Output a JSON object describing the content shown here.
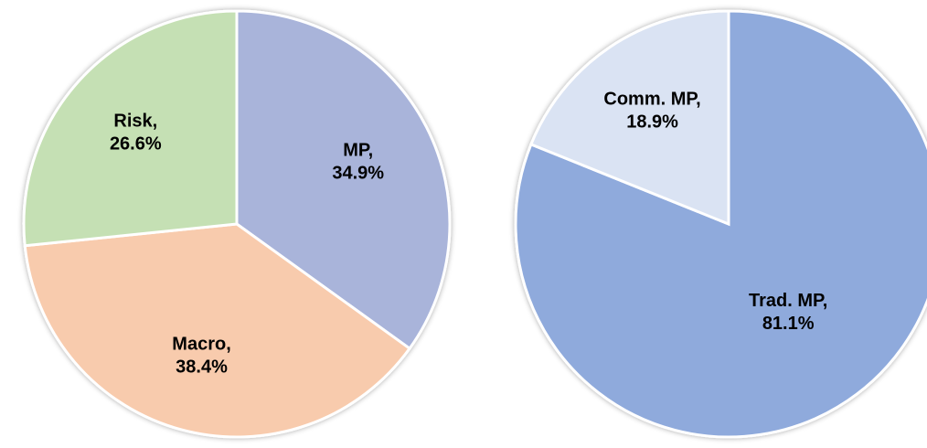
{
  "chart_data": [
    {
      "type": "pie",
      "categories": [
        "MP,",
        "Macro,",
        "Risk,"
      ],
      "values": [
        34.9,
        38.4,
        26.6
      ],
      "value_labels": [
        "34.9%",
        "38.4%",
        "26.6%"
      ],
      "colors": [
        "#a9b4da",
        "#f8cbad",
        "#c5e0b4"
      ]
    },
    {
      "type": "pie",
      "categories": [
        "Trad. MP,",
        "Comm. MP,"
      ],
      "values": [
        81.1,
        18.9
      ],
      "value_labels": [
        "81.1%",
        "18.9%"
      ],
      "colors": [
        "#8faadc",
        "#dae3f3"
      ]
    }
  ]
}
